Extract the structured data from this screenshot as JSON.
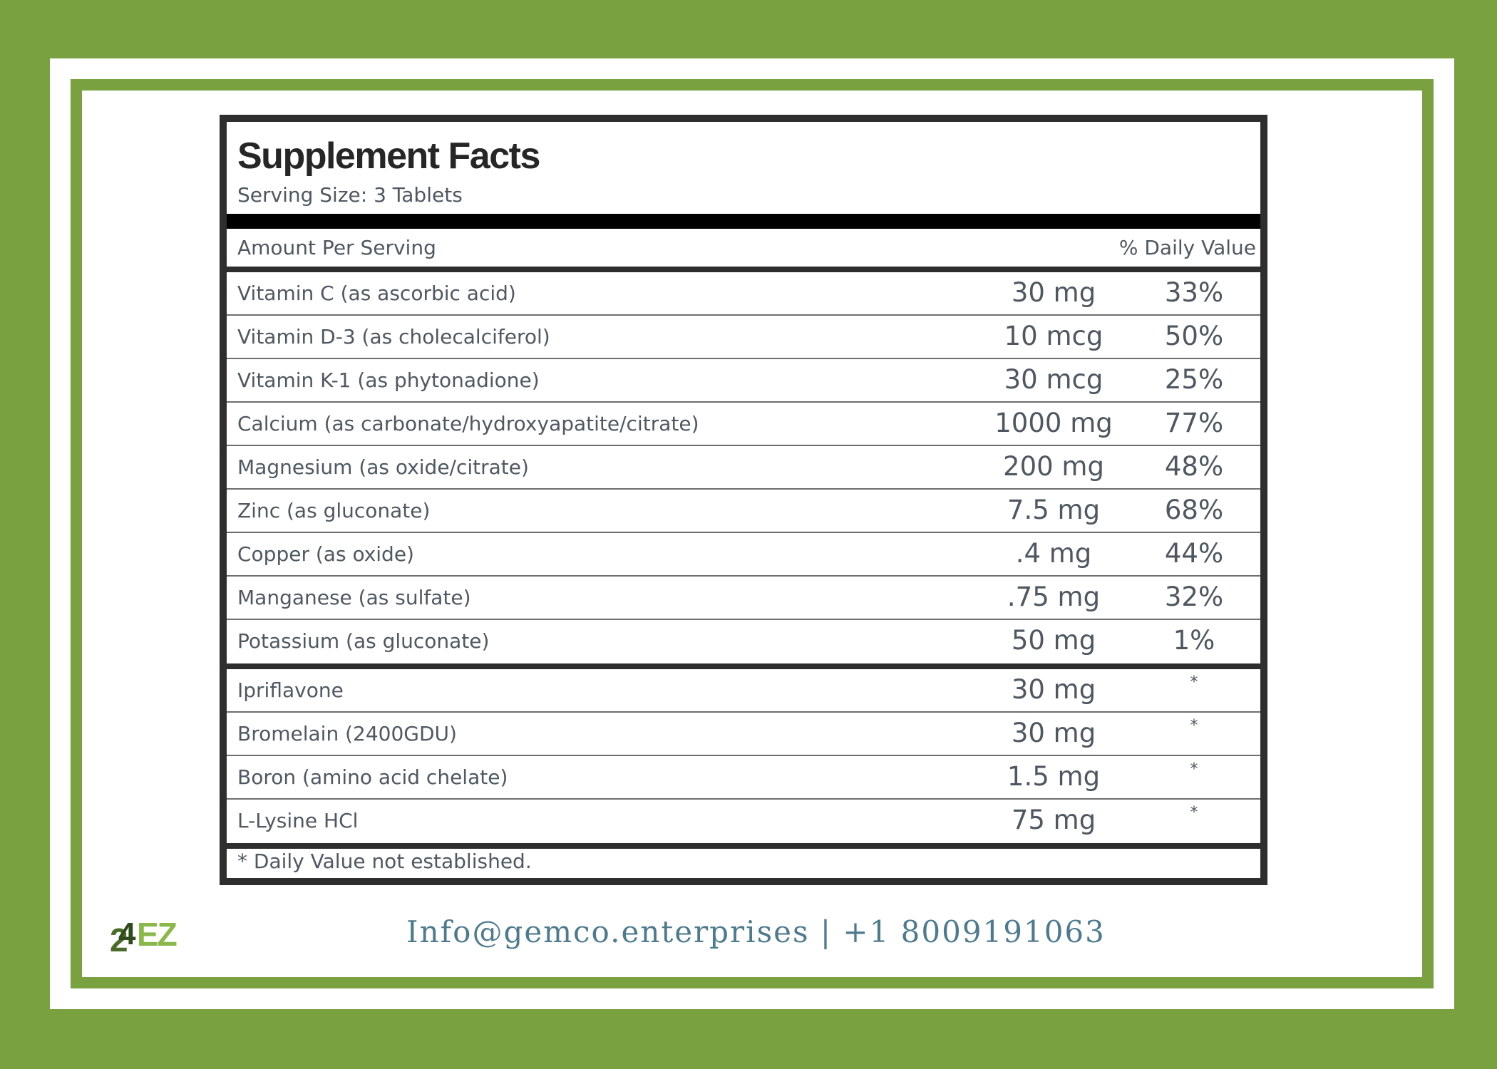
{
  "label": {
    "title": "Supplement Facts",
    "serving_size": "Serving Size: 3 Tablets",
    "amount_per_serving": "Amount Per Serving",
    "daily_value_header": "% Daily Value",
    "nutrients": [
      {
        "name": "Vitamin C (as ascorbic acid)",
        "amount": "30 mg",
        "dv": "33%"
      },
      {
        "name": "Vitamin D-3 (as cholecalciferol)",
        "amount": "10 mcg",
        "dv": "50%"
      },
      {
        "name": "Vitamin K-1 (as phytonadione)",
        "amount": "30 mcg",
        "dv": "25%"
      },
      {
        "name": "Calcium (as carbonate/hydroxyapatite/citrate)",
        "amount": "1000 mg",
        "dv": "77%"
      },
      {
        "name": "Magnesium (as oxide/citrate)",
        "amount": "200 mg",
        "dv": "48%"
      },
      {
        "name": "Zinc (as gluconate)",
        "amount": "7.5 mg",
        "dv": "68%"
      },
      {
        "name": "Copper (as oxide)",
        "amount": ".4 mg",
        "dv": "44%"
      },
      {
        "name": "Manganese (as sulfate)",
        "amount": ".75 mg",
        "dv": "32%"
      },
      {
        "name": "Potassium (as gluconate)",
        "amount": "50 mg",
        "dv": "1%"
      }
    ],
    "other_ingredients": [
      {
        "name": "Ipriflavone",
        "amount": "30 mg",
        "dv": "*"
      },
      {
        "name": "Bromelain (2400GDU)",
        "amount": "30 mg",
        "dv": "*"
      },
      {
        "name": "Boron (amino acid chelate)",
        "amount": "1.5 mg",
        "dv": "*"
      },
      {
        "name": "L-Lysine HCl",
        "amount": "75 mg",
        "dv": "*"
      }
    ],
    "footnote": "* Daily Value not established."
  },
  "footer": {
    "logo_text": "24EZ",
    "contact": "Info@gemco.enterprises | +1 8009191063"
  },
  "colors": {
    "brand_green": "#7aa13f",
    "logo_dark_green": "#4a6b2a",
    "logo_light_green": "#8ab84a",
    "contact_text": "#4e7a8e"
  }
}
